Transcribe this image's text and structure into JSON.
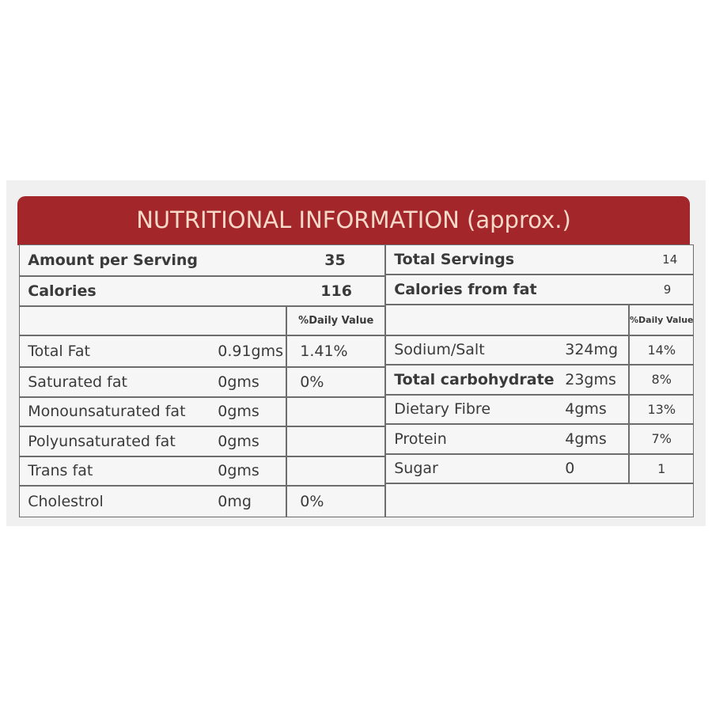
{
  "title": "NUTRITIONAL INFORMATION (approx.)",
  "left": {
    "amount_per_serving": {
      "label": "Amount per Serving",
      "value": "35"
    },
    "calories": {
      "label": "Calories",
      "value": "116"
    },
    "daily_value_header": "%Daily Value",
    "rows": [
      {
        "name": "Total Fat",
        "amount": "0.91gms",
        "dv": "1.41%"
      },
      {
        "name": "Saturated fat",
        "amount": "0gms",
        "dv": "0%"
      },
      {
        "name": "Monounsaturated fat",
        "amount": "0gms",
        "dv": ""
      },
      {
        "name": "Polyunsaturated fat",
        "amount": "0gms",
        "dv": ""
      },
      {
        "name": "Trans fat",
        "amount": "0gms",
        "dv": ""
      },
      {
        "name": "Cholestrol",
        "amount": "0mg",
        "dv": "0%"
      }
    ]
  },
  "right": {
    "total_servings": {
      "label": "Total Servings",
      "value": "14"
    },
    "calories_from_fat": {
      "label": "Calories from fat",
      "value": "9"
    },
    "daily_value_header": "%Daily Value",
    "rows": [
      {
        "name": "Sodium/Salt",
        "amount": "324mg",
        "dv": "14%"
      },
      {
        "name": "Total carbohydrate",
        "amount": "23gms",
        "dv": "8%"
      },
      {
        "name": "Dietary Fibre",
        "amount": "4gms",
        "dv": "13%"
      },
      {
        "name": "Protein",
        "amount": "4gms",
        "dv": "7%"
      },
      {
        "name": "Sugar",
        "amount": "0",
        "dv": "1"
      }
    ]
  },
  "colors": {
    "banner": "#a3262b",
    "banner_text": "#f6d9c8"
  }
}
